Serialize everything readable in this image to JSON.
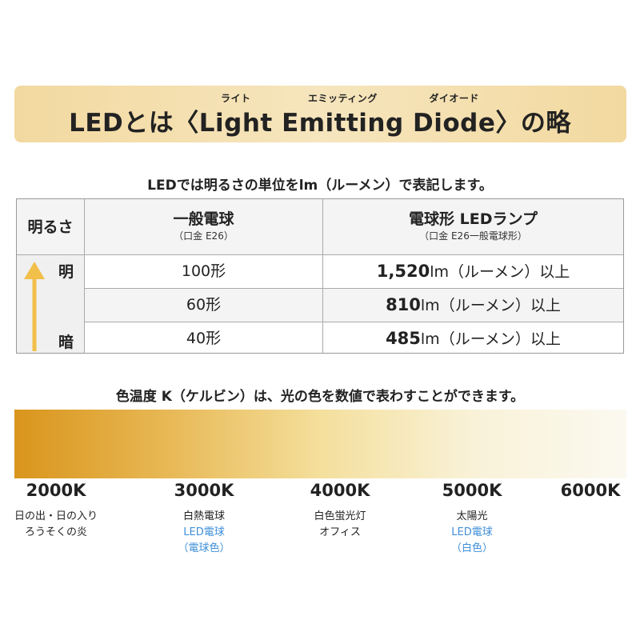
{
  "header": {
    "prefix": "LEDとは〈",
    "words": [
      {
        "text": "Light",
        "ruby": "ライト"
      },
      {
        "text": "Emitting",
        "ruby": "エミッティング"
      },
      {
        "text": "Diode",
        "ruby": "ダイオード"
      }
    ],
    "suffix": "〉の略"
  },
  "brightness": {
    "caption": "LEDでは明るさの単位をlm（ルーメン）で表記します。",
    "table": {
      "headers": [
        {
          "label": "明るさ"
        },
        {
          "label": "一般電球",
          "sub": "（口金 E26）"
        },
        {
          "label": "電球形 LEDランプ",
          "sub": "（口金 E26一般電球形）"
        }
      ],
      "high": "明",
      "low": "暗",
      "rows": [
        {
          "bulb": "100形",
          "lumen": "1,520",
          "unit": "lm（ルーメン）以上"
        },
        {
          "bulb": "60形",
          "lumen": "810",
          "unit": "lm（ルーメン）以上"
        },
        {
          "bulb": "40形",
          "lumen": "485",
          "unit": "lm（ルーメン）以上"
        }
      ]
    }
  },
  "color_temperature": {
    "caption": "色温度 K（ケルビン）は、光の色を数値で表わすことができます。",
    "scale": [
      {
        "label": "2000K",
        "desc": [
          "日の出・日の入り",
          "ろうそくの炎"
        ]
      },
      {
        "label": "3000K",
        "desc": [
          "白熱電球"
        ],
        "led": [
          "LED電球",
          "（電球色）"
        ]
      },
      {
        "label": "4000K",
        "desc": [
          "白色蛍光灯",
          "オフィス"
        ]
      },
      {
        "label": "5000K",
        "desc": [
          "太陽光"
        ],
        "led": [
          "LED電球",
          "（白色）"
        ]
      },
      {
        "label": "6000K"
      }
    ]
  }
}
